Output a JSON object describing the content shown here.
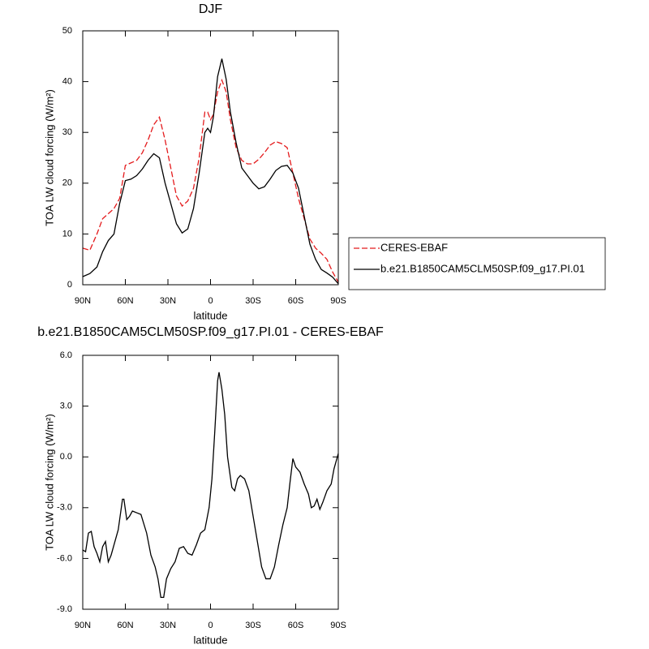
{
  "chart_data": [
    {
      "type": "line",
      "title": "DJF",
      "xlabel": "latitude",
      "ylabel": "TOA LW cloud forcing (W/m²)",
      "x": [
        90,
        85,
        80,
        76,
        72,
        68,
        64,
        60,
        56,
        52,
        48,
        44,
        40,
        36,
        32,
        28,
        24,
        20,
        16,
        12,
        8,
        4,
        2,
        0,
        -2,
        -5,
        -8,
        -11,
        -14,
        -18,
        -22,
        -26,
        -30,
        -34,
        -38,
        -42,
        -46,
        -50,
        -54,
        -58,
        -62,
        -66,
        -70,
        -74,
        -78,
        -82,
        -86,
        -90
      ],
      "series": [
        {
          "name": "CERES-EBAF",
          "color": "#e41a1c",
          "style": "dashed",
          "values": [
            7.2,
            6.8,
            10,
            13,
            14,
            15,
            17,
            23.5,
            24,
            24.5,
            26,
            28.5,
            31.5,
            33,
            28.5,
            23,
            17.5,
            15.5,
            16.5,
            19,
            25,
            34,
            34,
            32.5,
            33.5,
            38,
            40.3,
            38,
            32.5,
            27,
            24.5,
            23.8,
            23.8,
            24.7,
            26,
            27.5,
            28.2,
            27.8,
            27,
            22,
            17,
            13,
            9,
            7.2,
            6.2,
            5,
            2.5,
            0.5
          ]
        },
        {
          "name": "b.e21.B1850CAM5CLM50SP.f09_g17.PI.01",
          "color": "#000000",
          "style": "solid",
          "values": [
            1.6,
            2.2,
            3.5,
            6.5,
            8.7,
            10,
            16,
            20.5,
            20.8,
            21.5,
            22.8,
            24.5,
            25.8,
            25,
            20,
            16,
            12,
            10.2,
            11,
            15,
            22,
            30,
            30.8,
            30,
            33,
            41,
            44.5,
            40.5,
            34,
            28,
            23,
            21.5,
            20,
            18.9,
            19.3,
            20.8,
            22.5,
            23.3,
            23.5,
            22,
            19,
            13.5,
            8,
            5,
            3,
            2.3,
            1.5,
            0.2
          ]
        }
      ],
      "xlim": [
        90,
        -90
      ],
      "xticks": [
        {
          "value": 90,
          "label": "90N"
        },
        {
          "value": 60,
          "label": "60N"
        },
        {
          "value": 30,
          "label": "30N"
        },
        0,
        {
          "value": -30,
          "label": "30S"
        },
        {
          "value": -60,
          "label": "60S"
        },
        {
          "value": -90,
          "label": "90S"
        }
      ],
      "ylim": [
        0,
        50
      ],
      "yticks": [
        0,
        10,
        20,
        30,
        40,
        50
      ],
      "legend": "right"
    },
    {
      "type": "line",
      "title": "b.e21.B1850CAM5CLM50SP.f09_g17.PI.01 - CERES-EBAF",
      "xlabel": "latitude",
      "ylabel": "TOA LW cloud forcing (W/m²)",
      "x": [
        90,
        88,
        86,
        84,
        82,
        80,
        78,
        76,
        74,
        72,
        70,
        68,
        65,
        62,
        61,
        59,
        57,
        55,
        52,
        49,
        45,
        42,
        39,
        37,
        35,
        33,
        31,
        28,
        25,
        22,
        19,
        16,
        13,
        10,
        7,
        4,
        1,
        -1,
        -3,
        -5,
        -6,
        -8,
        -10,
        -12,
        -15,
        -17,
        -19,
        -21,
        -24,
        -27,
        -30,
        -33,
        -36,
        -39,
        -42,
        -45,
        -48,
        -51,
        -54,
        -56,
        -58,
        -60,
        -63,
        -66,
        -69,
        -71,
        -73,
        -75,
        -77,
        -79,
        -82,
        -85,
        -87,
        -90
      ],
      "series": [
        {
          "color": "#000000",
          "style": "solid",
          "values": [
            -5.5,
            -5.6,
            -4.5,
            -4.4,
            -5.3,
            -5.7,
            -6.2,
            -5.3,
            -5.0,
            -6.2,
            -5.8,
            -5.2,
            -4.3,
            -2.5,
            -2.5,
            -3.7,
            -3.5,
            -3.2,
            -3.3,
            -3.4,
            -4.5,
            -5.8,
            -6.5,
            -7.2,
            -8.3,
            -8.3,
            -7.2,
            -6.6,
            -6.2,
            -5.4,
            -5.3,
            -5.7,
            -5.8,
            -5.2,
            -4.5,
            -4.3,
            -3.0,
            -1.3,
            1.5,
            4.5,
            5.0,
            4.0,
            2.5,
            0,
            -1.8,
            -2,
            -1.3,
            -1.1,
            -1.3,
            -2,
            -3.5,
            -5,
            -6.5,
            -7.2,
            -7.2,
            -6.5,
            -5.2,
            -4,
            -3,
            -1.5,
            -0.1,
            -0.6,
            -0.9,
            -1.6,
            -2.2,
            -3.0,
            -2.9,
            -2.5,
            -3.1,
            -2.7,
            -2.0,
            -1.6,
            -0.7,
            0.2
          ]
        }
      ],
      "xlim": [
        90,
        -90
      ],
      "xticks": [
        {
          "value": 90,
          "label": "90N"
        },
        {
          "value": 60,
          "label": "60N"
        },
        {
          "value": 30,
          "label": "30N"
        },
        0,
        {
          "value": -30,
          "label": "30S"
        },
        {
          "value": -60,
          "label": "60S"
        },
        {
          "value": -90,
          "label": "90S"
        }
      ],
      "ylim": [
        -9,
        6
      ],
      "yticks": [
        {
          "value": -9,
          "label": "-9.0"
        },
        {
          "value": -6,
          "label": "-6.0"
        },
        {
          "value": -3,
          "label": "-3.0"
        },
        {
          "value": 0,
          "label": "0.0"
        },
        {
          "value": 3,
          "label": "3.0"
        },
        {
          "value": 6,
          "label": "6.0"
        }
      ]
    }
  ]
}
